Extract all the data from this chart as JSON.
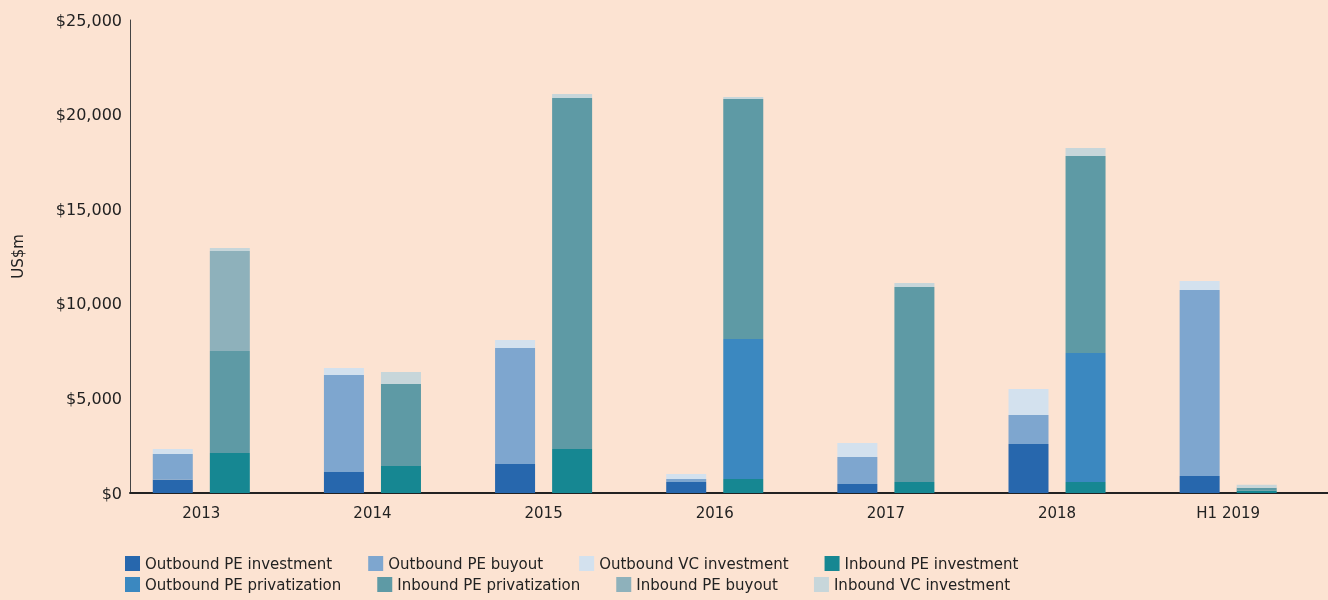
{
  "chart_data": {
    "type": "bar",
    "stacked": true,
    "ylabel": "US$m",
    "categories": [
      null,
      null,
      "2013",
      null,
      null,
      null,
      null,
      null,
      "2014",
      null,
      null,
      null,
      null,
      null,
      "2015",
      null,
      null,
      null,
      null,
      null,
      "2016",
      null,
      null,
      null,
      null,
      null,
      "2017",
      null,
      null,
      null,
      null,
      null,
      "2018",
      null,
      null,
      null,
      null,
      null,
      "H1 2019",
      null,
      null,
      null
    ],
    "series": [
      {
        "name": "Outbound PE investment",
        "color": "#2767ad",
        "values": [
          null,
          700,
          null,
          null,
          null,
          null,
          null,
          1110,
          null,
          null,
          null,
          null,
          null,
          1530,
          null,
          null,
          null,
          null,
          null,
          580,
          null,
          null,
          null,
          null,
          null,
          480,
          null,
          null,
          null,
          null,
          null,
          2590,
          null,
          null,
          null,
          null,
          null,
          900,
          null,
          null,
          null,
          null
        ]
      },
      {
        "name": "Outbound PE buyout",
        "color": "#7ea6cf",
        "values": [
          null,
          1360,
          null,
          null,
          null,
          null,
          null,
          5130,
          null,
          null,
          null,
          null,
          null,
          6130,
          null,
          null,
          null,
          null,
          null,
          160,
          null,
          null,
          null,
          null,
          null,
          1420,
          null,
          null,
          null,
          null,
          null,
          1530,
          null,
          null,
          null,
          null,
          null,
          9830,
          null,
          null,
          null,
          null
        ]
      },
      {
        "name": "Outbound VC investment",
        "color": "#d3e1ee",
        "values": [
          null,
          270,
          null,
          null,
          null,
          null,
          null,
          370,
          null,
          null,
          null,
          null,
          null,
          430,
          null,
          null,
          null,
          null,
          null,
          260,
          null,
          null,
          null,
          null,
          null,
          740,
          null,
          null,
          null,
          null,
          null,
          1380,
          null,
          null,
          null,
          null,
          null,
          470,
          null,
          null,
          null,
          null
        ]
      },
      {
        "name": "Inbound PE investment",
        "color": "#168792",
        "values": [
          null,
          null,
          null,
          2110,
          null,
          null,
          null,
          null,
          null,
          1430,
          null,
          null,
          null,
          null,
          null,
          2330,
          null,
          null,
          null,
          null,
          null,
          740,
          null,
          null,
          null,
          null,
          null,
          580,
          null,
          null,
          null,
          null,
          null,
          580,
          null,
          null,
          null,
          null,
          null,
          130,
          null,
          null
        ]
      },
      {
        "name": "Outbound PE privatization",
        "color": "#3b88c0",
        "values": [
          null,
          null,
          null,
          0,
          null,
          null,
          null,
          null,
          null,
          0,
          null,
          null,
          null,
          null,
          null,
          0,
          null,
          null,
          null,
          null,
          null,
          7400,
          null,
          null,
          null,
          null,
          null,
          0,
          null,
          null,
          null,
          null,
          null,
          6820,
          null,
          null,
          null,
          null,
          null,
          0,
          null,
          null
        ]
      },
      {
        "name": "Inbound PE privatization",
        "color": "#5e9aa5",
        "values": [
          null,
          null,
          null,
          5390,
          null,
          null,
          null,
          null,
          null,
          4330,
          null,
          null,
          null,
          null,
          null,
          18550,
          null,
          null,
          null,
          null,
          null,
          12680,
          null,
          null,
          null,
          null,
          null,
          10310,
          null,
          null,
          null,
          null,
          null,
          10410,
          null,
          null,
          null,
          null,
          null,
          150,
          null,
          null
        ]
      },
      {
        "name": "Inbound PE buyout",
        "color": "#8eb1bb",
        "values": [
          null,
          null,
          null,
          5290,
          null,
          null,
          null,
          null,
          null,
          0,
          null,
          null,
          null,
          null,
          null,
          0,
          null,
          null,
          null,
          null,
          null,
          0,
          null,
          null,
          null,
          null,
          null,
          0,
          null,
          null,
          null,
          null,
          null,
          0,
          null,
          null,
          null,
          null,
          null,
          0,
          null,
          null
        ]
      },
      {
        "name": "Inbound VC investment",
        "color": "#c7d6da",
        "values": [
          null,
          null,
          null,
          160,
          null,
          null,
          null,
          null,
          null,
          640,
          null,
          null,
          null,
          null,
          null,
          210,
          null,
          null,
          null,
          null,
          null,
          110,
          null,
          null,
          null,
          null,
          null,
          210,
          null,
          null,
          null,
          null,
          null,
          430,
          null,
          null,
          null,
          null,
          null,
          150,
          null,
          null
        ]
      }
    ],
    "ylim": [
      0,
      25000
    ],
    "yticks": [
      {
        "value": 0,
        "label": "$0"
      },
      {
        "value": 5000,
        "label": "$5,000"
      },
      {
        "value": 10000,
        "label": "$10,000"
      },
      {
        "value": 15000,
        "label": "$15,000"
      },
      {
        "value": 20000,
        "label": "$20,000"
      },
      {
        "value": 25000,
        "label": "$25,000"
      }
    ],
    "grid": false,
    "legend": "bottom"
  }
}
